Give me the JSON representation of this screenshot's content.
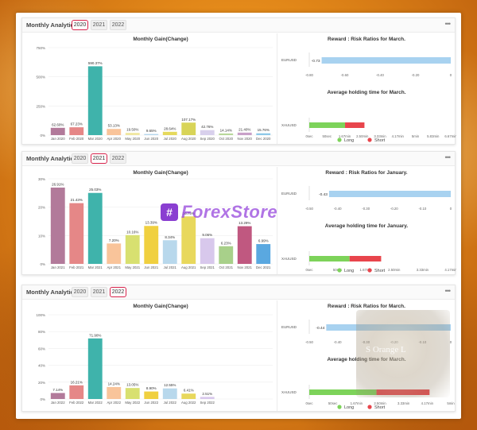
{
  "watermark": {
    "brand": "ForexStore",
    "logo_glyph": "#",
    "corner_text": "S Orange L"
  },
  "colors": {
    "tab_selected_border": "#d8234c",
    "long": "#7dd35a",
    "short": "#e8454c",
    "rr_bar": "#a8d2f0"
  },
  "panels": [
    {
      "title": "Monthly Analytics",
      "tabs": [
        "2020",
        "2021",
        "2022"
      ],
      "selected_tab": "2020",
      "menu": "•••",
      "chart_data": {
        "type": "bar",
        "title": "Monthly Gain(Change)",
        "categories": [
          "Jan 2020",
          "Feb 2020",
          "Mar 2020",
          "Apr 2020",
          "May 2020",
          "Jun 2020",
          "Jul 2020",
          "Aug 2020",
          "Sep 2020",
          "Oct 2020",
          "Nov 2020",
          "Dec 2020"
        ],
        "values": [
          62.6,
          67.23,
          590.37,
          53.13,
          19.5,
          9.65,
          28.64,
          107.17,
          42.76,
          14.14,
          21.4,
          15.76
        ],
        "labels": [
          "62.60%",
          "67.23%",
          "590.37%",
          "53.13%",
          "19.50%",
          "9.65%",
          "28.64%",
          "107.17%",
          "42.76%",
          "14.14%",
          "21.40%",
          "15.76%"
        ],
        "ylim": [
          0,
          750
        ],
        "ytick_values": [
          0,
          250,
          500,
          750
        ],
        "yticks": [
          "0%",
          "250%",
          "500%",
          "750%"
        ],
        "colors": [
          "#b27a9a",
          "#e58787",
          "#3fb3ab",
          "#f9c49a",
          "#f0e7a0",
          "#b5d6ec",
          "#e5d95c",
          "#d8d458",
          "#d8d0ec",
          "#b8d89a",
          "#c8a0c8",
          "#8ec8e8"
        ]
      },
      "rr": {
        "title": "Reward : Risk Ratios for March.",
        "symbol": "EURUSD",
        "value": -0.73,
        "value_label": "-0.73",
        "axis_min": -0.8,
        "axis_max": 0,
        "axis_values": [
          -0.8,
          -0.6,
          -0.4,
          -0.2,
          0
        ],
        "axis": [
          "-0.80",
          "-0.60",
          "-0.40",
          "-0.20",
          "0"
        ]
      },
      "hold": {
        "title": "Average holding time for March.",
        "symbol": "XAUUSD",
        "long_frac": 0.253,
        "short_frac": 0.137,
        "axis": [
          "0sec",
          "50sec",
          "1.67min",
          "2.50min",
          "3.33min",
          "4.17min",
          "5min",
          "5.83min",
          "6.67min"
        ],
        "legend_long": "Long",
        "legend_short": "Short"
      }
    },
    {
      "title": "Monthly Analytics",
      "tabs": [
        "2020",
        "2021",
        "2022"
      ],
      "selected_tab": "2021",
      "menu": "•••",
      "chart_data": {
        "type": "bar",
        "title": "Monthly Gain(Change)",
        "categories": [
          "Jan 2021",
          "Feb 2021",
          "Mar 2021",
          "Apr 2021",
          "May 2021",
          "Jun 2021",
          "Jul 2021",
          "Aug 2021",
          "Sep 2021",
          "Oct 2021",
          "Nov 2021",
          "Dec 2021"
        ],
        "values": [
          26.91,
          21.43,
          25.03,
          7.2,
          10.16,
          13.39,
          8.34,
          16.75,
          9.06,
          6.23,
          13.29,
          6.99
        ],
        "labels": [
          "26.91%",
          "21.43%",
          "25.03%",
          "7.20%",
          "10.16%",
          "13.39%",
          "8.34%",
          "16.75%",
          "9.06%",
          "6.23%",
          "13.29%",
          "6.99%"
        ],
        "ylim": [
          0,
          30
        ],
        "ytick_values": [
          0,
          10,
          20,
          30
        ],
        "yticks": [
          "0%",
          "10%",
          "20%",
          "30%"
        ],
        "colors": [
          "#b27a9a",
          "#e58787",
          "#3fb3ab",
          "#f9c49a",
          "#d8e070",
          "#f0d040",
          "#b8d8ec",
          "#e8d85c",
          "#d8c8ec",
          "#a8d08a",
          "#c05880",
          "#5aa8e0"
        ]
      },
      "rr": {
        "title": "Reward : Risk Ratios for January.",
        "symbol": "EURUSD",
        "value": -0.43,
        "value_label": "-0.43",
        "axis_min": -0.5,
        "axis_max": 0,
        "axis_values": [
          -0.5,
          -0.4,
          -0.3,
          -0.2,
          -0.1,
          0
        ],
        "axis": [
          "-0.50",
          "-0.40",
          "-0.30",
          "-0.20",
          "-0.10",
          "0"
        ]
      },
      "hold": {
        "title": "Average holding time for January.",
        "symbol": "XAUUSD",
        "long_frac": 0.285,
        "short_frac": 0.223,
        "axis": [
          "0sec",
          "50sec",
          "1.67min",
          "2.50min",
          "3.33min",
          "4.17min"
        ],
        "legend_long": "Long",
        "legend_short": "Short"
      }
    },
    {
      "title": "Monthly Analytics",
      "tabs": [
        "2020",
        "2021",
        "2022"
      ],
      "selected_tab": "2022",
      "menu": "•••",
      "chart_data": {
        "type": "bar",
        "title": "Monthly Gain(Change)",
        "categories": [
          "Jan 2022",
          "Feb 2022",
          "Mar 2022",
          "Apr 2022",
          "May 2022",
          "Jun 2022",
          "Jul 2022",
          "Aug 2022",
          "Sep 2022"
        ],
        "values": [
          7.14,
          16.21,
          71.9,
          14.24,
          13.05,
          8.9,
          12.55,
          6.41,
          2.51
        ],
        "labels": [
          "7.14%",
          "16.21%",
          "71.90%",
          "14.24%",
          "13.05%",
          "8.90%",
          "12.55%",
          "6.41%",
          "2.51%"
        ],
        "ylim": [
          0,
          100
        ],
        "ytick_values": [
          0,
          20,
          40,
          60,
          80,
          100
        ],
        "yticks": [
          "0%",
          "20%",
          "40%",
          "60%",
          "80%",
          "100%"
        ],
        "colors": [
          "#b27a9a",
          "#e58787",
          "#3fb3ab",
          "#f9c49a",
          "#d8e070",
          "#f0d040",
          "#b8d8ec",
          "#e8d85c",
          "#d8c8ec"
        ]
      },
      "rr": {
        "title": "Reward : Risk Ratios for March.",
        "symbol": "EURUSD",
        "value": -0.44,
        "value_label": "-0.44",
        "axis_min": -0.5,
        "axis_max": 0,
        "axis_values": [
          -0.5,
          -0.4,
          -0.3,
          -0.2,
          -0.1,
          0
        ],
        "axis": [
          "-0.50",
          "-0.40",
          "-0.30",
          "-0.20",
          "-0.10",
          "0"
        ]
      },
      "hold": {
        "title": "Average holding time for March.",
        "symbol": "XAUUSD",
        "long_frac": 0.475,
        "short_frac": 0.375,
        "axis": [
          "0sec",
          "50sec",
          "1.67min",
          "2.50min",
          "3.33min",
          "4.17min",
          "5min"
        ],
        "legend_long": "Long",
        "legend_short": "Short"
      }
    }
  ]
}
